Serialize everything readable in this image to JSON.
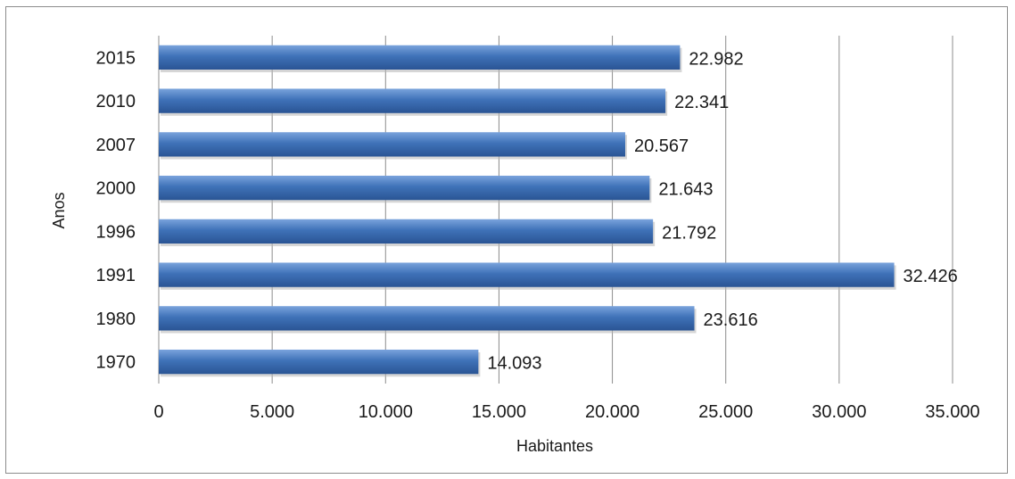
{
  "chart_data": {
    "type": "bar",
    "orientation": "horizontal",
    "categories": [
      "2015",
      "2010",
      "2007",
      "2000",
      "1996",
      "1991",
      "1980",
      "1970"
    ],
    "values": [
      22982,
      22341,
      20567,
      21643,
      21792,
      32426,
      23616,
      14093
    ],
    "data_labels": [
      "22.982",
      "22.341",
      "20.567",
      "21.643",
      "21.792",
      "32.426",
      "23.616",
      "14.093"
    ],
    "x_ticks": [
      0,
      5000,
      10000,
      15000,
      20000,
      25000,
      30000,
      35000
    ],
    "x_tick_labels": [
      "0",
      "5.000",
      "10.000",
      "15.000",
      "20.000",
      "25.000",
      "30.000",
      "35.000"
    ],
    "xlim": [
      0,
      35000
    ],
    "xlabel": "Habitantes",
    "ylabel": "Anos",
    "grid": "vertical",
    "legend": "none",
    "colors": {
      "bar": "#3f72b8",
      "bar_dark": "#2a5494",
      "bar_light": "#7aa3dc",
      "grid": "#8c8c8c"
    }
  }
}
